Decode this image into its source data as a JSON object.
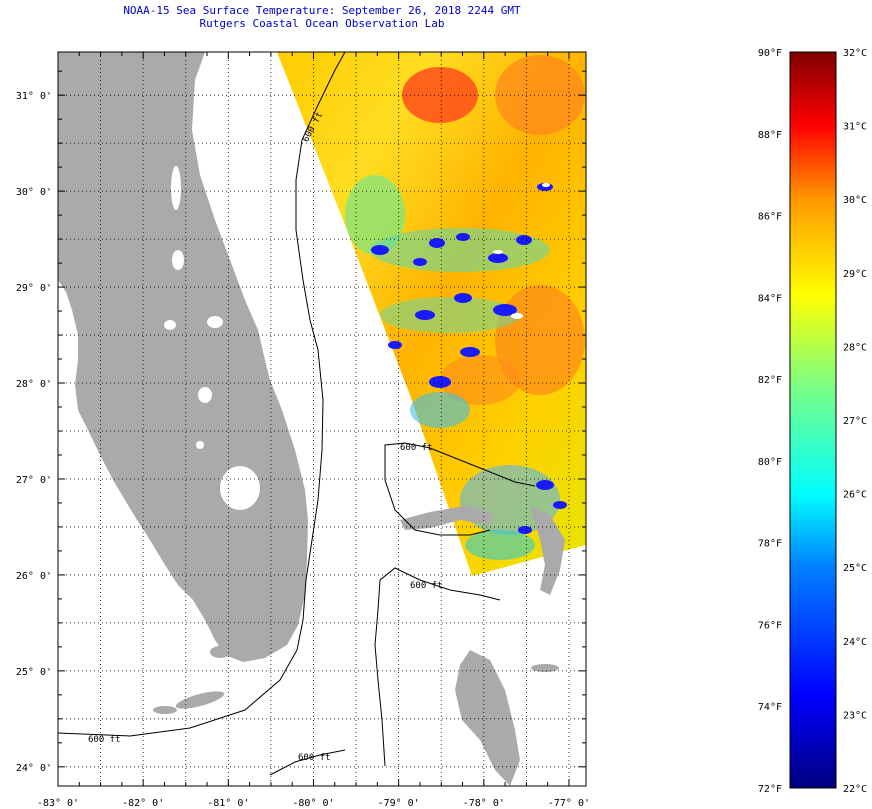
{
  "title": {
    "line1": "NOAA-15 Sea Surface Temperature:  September 26, 2018 2244 GMT",
    "line2": "Rutgers Coastal Ocean Observation Lab"
  },
  "map": {
    "lon_labels": [
      "-83° 0'",
      "-82° 0'",
      "-81° 0'",
      "-80° 0'",
      "-79° 0'",
      "-78° 0'",
      "-77° 0'"
    ],
    "lat_labels": [
      "31° 0'",
      "30° 0'",
      "29° 0'",
      "28° 0'",
      "27° 0'",
      "26° 0'",
      "25° 0'",
      "24° 0'"
    ],
    "lon_range": [
      -83,
      -76.8
    ],
    "lat_range": [
      23.8,
      31.45
    ],
    "contour_label": "600 ft",
    "land_color": "#aaaaaa",
    "water_color": "#ffffff"
  },
  "colorbar": {
    "fahrenheit_labels": [
      "90°F",
      "88°F",
      "86°F",
      "84°F",
      "82°F",
      "80°F",
      "78°F",
      "76°F",
      "74°F",
      "72°F"
    ],
    "celsius_labels": [
      "32°C",
      "31°C",
      "30°C",
      "29°C",
      "28°C",
      "27°C",
      "26°C",
      "25°C",
      "24°C",
      "23°C",
      "22°C"
    ],
    "range_f": [
      72,
      90
    ],
    "range_c": [
      22,
      32
    ],
    "colors": [
      "#00007f",
      "#0000ff",
      "#007fff",
      "#00ffff",
      "#7fff7f",
      "#ffff00",
      "#ff7f00",
      "#ff0000",
      "#7f0000"
    ]
  }
}
